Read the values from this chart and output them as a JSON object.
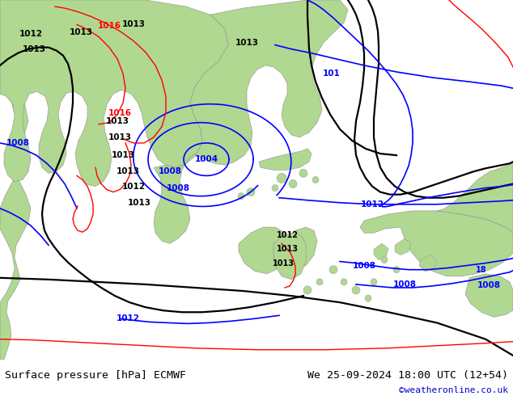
{
  "title_left": "Surface pressure [hPa] ECMWF",
  "title_right": "We 25-09-2024 18:00 UTC (12+54)",
  "credit": "©weatheronline.co.uk",
  "figsize": [
    6.34,
    4.9
  ],
  "dpi": 100,
  "bg_color": "#d8d8d8",
  "land_color": "#b0d890",
  "bottom_bar_color": "#f0f0f0",
  "title_fontsize": 9.5,
  "credit_fontsize": 8,
  "credit_color": "#0000cc",
  "label_fontsize": 7.5,
  "black_lw": 1.6,
  "blue_lw": 1.2,
  "red_lw": 1.0
}
